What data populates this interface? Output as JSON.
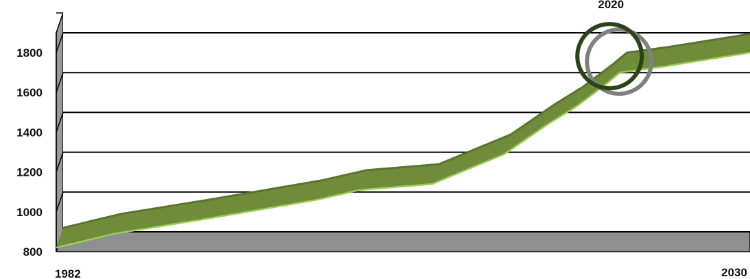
{
  "chart_data": {
    "type": "area",
    "style": "3d-ribbon",
    "x": [
      1982,
      1986,
      1992,
      1996,
      2000,
      2003,
      2008,
      2013,
      2016,
      2018,
      2020,
      2021,
      2024,
      2030
    ],
    "values": [
      820,
      890,
      960,
      1010,
      1060,
      1110,
      1140,
      1290,
      1440,
      1530,
      1640,
      1700,
      1730,
      1800
    ],
    "x_tick_labels": [
      "1982",
      "2030"
    ],
    "y_ticks": [
      800,
      1000,
      1200,
      1400,
      1600,
      1800
    ],
    "ylim": [
      800,
      1900
    ],
    "xlim": [
      1982,
      2030
    ],
    "grid": true,
    "colors": {
      "ribbon": "#6e8c3a",
      "ribbon_edge": "#9ccc55",
      "wall": "#999999",
      "floor": "#8f8f8f",
      "circle": "#2c421a",
      "circle_shadow": "#808080"
    },
    "annotations": [
      {
        "label": "2020",
        "x": 2020,
        "y": 1700,
        "shape": "circle"
      }
    ],
    "title": "",
    "xlabel": "",
    "ylabel": ""
  }
}
